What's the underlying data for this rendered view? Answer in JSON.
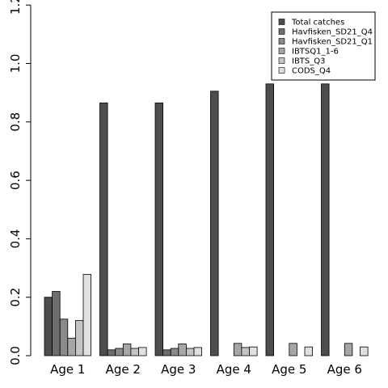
{
  "chart_data": {
    "type": "bar",
    "title": "",
    "xlabel": "",
    "ylabel": "",
    "ylim": [
      0,
      1.2
    ],
    "yticks": [
      "0.0",
      "0.2",
      "0.4",
      "0.6",
      "0.8",
      "1.0",
      "1.2"
    ],
    "grid": false,
    "legend_position": "top-right",
    "categories": [
      "Age 1",
      "Age 2",
      "Age 3",
      "Age 4",
      "Age 5",
      "Age 6"
    ],
    "series": [
      {
        "name": "Total catches",
        "color": "#4d4d4d",
        "values": [
          0.2,
          0.865,
          0.865,
          0.905,
          0.93,
          0.93
        ]
      },
      {
        "name": "Havfisken_SD21_Q4",
        "color": "#6e6e6e",
        "values": [
          0.22,
          0.02,
          0.02,
          0.0,
          0.0,
          0.0
        ]
      },
      {
        "name": "Havfisken_SD21_Q1",
        "color": "#8a8a8a",
        "values": [
          0.125,
          0.025,
          0.025,
          0.0,
          0.0,
          0.0
        ]
      },
      {
        "name": "IBTSQ1_1-6",
        "color": "#a6a6a6",
        "values": [
          0.06,
          0.04,
          0.04,
          0.042,
          0.042,
          0.042
        ]
      },
      {
        "name": "IBTS_Q3",
        "color": "#c4c4c4",
        "values": [
          0.12,
          0.025,
          0.025,
          0.028,
          0.0,
          0.0
        ]
      },
      {
        "name": "CODS_Q4",
        "color": "#e0e0e0",
        "values": [
          0.278,
          0.028,
          0.028,
          0.03,
          0.03,
          0.03
        ]
      }
    ]
  }
}
